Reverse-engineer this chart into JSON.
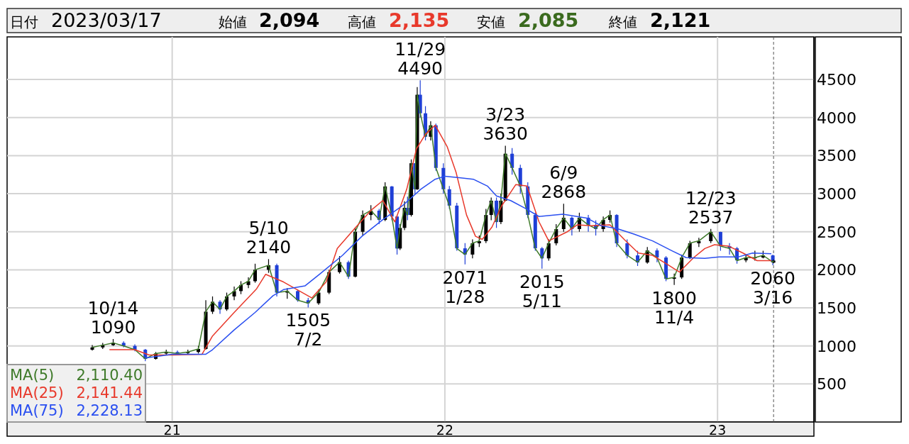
{
  "chart_data": {
    "type": "candlestick",
    "x": [
      "2020-09-16",
      "2020-09-30",
      "2020-10-14",
      "2020-10-28",
      "2020-11-12",
      "2020-11-26",
      "2020-12-10",
      "2020-12-24",
      "2021-01-08",
      "2021-01-22",
      "2021-02-05",
      "2021-02-15",
      "2021-02-24",
      "2021-03-06",
      "2021-03-15",
      "2021-03-25",
      "2021-04-03",
      "2021-04-13",
      "2021-04-22",
      "2021-05-10",
      "2021-05-21",
      "2021-06-04",
      "2021-06-18",
      "2021-07-02",
      "2021-07-16",
      "2021-07-30",
      "2021-08-13",
      "2021-08-25",
      "2021-09-03",
      "2021-09-13",
      "2021-09-24",
      "2021-10-05",
      "2021-10-13",
      "2021-10-22",
      "2021-10-29",
      "2021-11-02",
      "2021-11-08",
      "2021-11-12",
      "2021-11-17",
      "2021-11-22",
      "2021-11-25",
      "2021-11-29",
      "2021-12-06",
      "2021-12-13",
      "2021-12-20",
      "2021-12-30",
      "2022-01-07",
      "2022-01-17",
      "2022-01-28",
      "2022-02-07",
      "2022-02-16",
      "2022-02-25",
      "2022-03-04",
      "2022-03-11",
      "2022-03-17",
      "2022-03-23",
      "2022-04-01",
      "2022-04-12",
      "2022-04-22",
      "2022-05-02",
      "2022-05-11",
      "2022-05-20",
      "2022-05-30",
      "2022-06-09",
      "2022-06-20",
      "2022-06-30",
      "2022-07-12",
      "2022-07-22",
      "2022-08-01",
      "2022-08-10",
      "2022-08-19",
      "2022-09-02",
      "2022-09-16",
      "2022-09-29",
      "2022-10-12",
      "2022-10-24",
      "2022-11-04",
      "2022-11-14",
      "2022-11-25",
      "2022-12-07",
      "2022-12-23",
      "2023-01-05",
      "2023-01-17",
      "2023-01-27",
      "2023-02-08",
      "2023-02-20",
      "2023-03-03",
      "2023-03-16",
      "2023-03-17"
    ],
    "ohlc": [
      [
        950,
        1010,
        940,
        980
      ],
      [
        980,
        1040,
        960,
        1010
      ],
      [
        1010,
        1090,
        1000,
        1040
      ],
      [
        1040,
        1060,
        980,
        1000
      ],
      [
        1000,
        1020,
        930,
        950
      ],
      [
        950,
        960,
        800,
        830
      ],
      [
        830,
        920,
        820,
        900
      ],
      [
        900,
        950,
        880,
        920
      ],
      [
        920,
        940,
        880,
        905
      ],
      [
        905,
        950,
        890,
        920
      ],
      [
        920,
        1000,
        900,
        960
      ],
      [
        960,
        1600,
        950,
        1450
      ],
      [
        1450,
        1650,
        1420,
        1580
      ],
      [
        1580,
        1600,
        1420,
        1480
      ],
      [
        1480,
        1700,
        1460,
        1650
      ],
      [
        1650,
        1780,
        1600,
        1720
      ],
      [
        1720,
        1850,
        1680,
        1800
      ],
      [
        1800,
        1900,
        1760,
        1850
      ],
      [
        1850,
        2080,
        1830,
        2000
      ],
      [
        2000,
        2140,
        1960,
        2060
      ],
      [
        2060,
        2080,
        1650,
        1700
      ],
      [
        1700,
        1760,
        1620,
        1720
      ],
      [
        1720,
        1740,
        1580,
        1600
      ],
      [
        1600,
        1630,
        1505,
        1560
      ],
      [
        1560,
        1740,
        1540,
        1700
      ],
      [
        1700,
        2000,
        1680,
        1970
      ],
      [
        1970,
        2180,
        1950,
        2100
      ],
      [
        2100,
        2120,
        1880,
        1910
      ],
      [
        1910,
        2550,
        1900,
        2500
      ],
      [
        2500,
        2780,
        2450,
        2720
      ],
      [
        2720,
        2850,
        2650,
        2777
      ],
      [
        2777,
        2800,
        2600,
        2655
      ],
      [
        2655,
        3150,
        2640,
        3095
      ],
      [
        3095,
        3100,
        2650,
        2700
      ],
      [
        2700,
        2720,
        2200,
        2280
      ],
      [
        2280,
        2600,
        2260,
        2550
      ],
      [
        2550,
        2900,
        2520,
        2814
      ],
      [
        2814,
        2960,
        2650,
        2720
      ],
      [
        2720,
        3450,
        2700,
        3400
      ],
      [
        3400,
        3400,
        3000,
        3058
      ],
      [
        3058,
        4400,
        3050,
        4300
      ],
      [
        4300,
        4490,
        4000,
        4056
      ],
      [
        4056,
        4150,
        3700,
        3748
      ],
      [
        3748,
        3950,
        3700,
        3898
      ],
      [
        3898,
        3920,
        3300,
        3338
      ],
      [
        3338,
        3400,
        3000,
        3058
      ],
      [
        3058,
        3100,
        2800,
        2843
      ],
      [
        2843,
        2880,
        2250,
        2282
      ],
      [
        2282,
        2350,
        2071,
        2200
      ],
      [
        2200,
        2400,
        2150,
        2348
      ],
      [
        2348,
        2450,
        2300,
        2376
      ],
      [
        2376,
        2800,
        2350,
        2720
      ],
      [
        2720,
        2950,
        2650,
        2908
      ],
      [
        2908,
        2950,
        2550,
        2627
      ],
      [
        2627,
        3000,
        2600,
        2908
      ],
      [
        2908,
        3630,
        2900,
        3525
      ],
      [
        3525,
        3600,
        3250,
        3338
      ],
      [
        3338,
        3380,
        3000,
        3095
      ],
      [
        3095,
        3150,
        2680,
        2720
      ],
      [
        2720,
        2750,
        2250,
        2282
      ],
      [
        2282,
        2300,
        2015,
        2150
      ],
      [
        2150,
        2400,
        2120,
        2348
      ],
      [
        2348,
        2600,
        2320,
        2535
      ],
      [
        2535,
        2868,
        2500,
        2684
      ],
      [
        2684,
        2700,
        2450,
        2535
      ],
      [
        2535,
        2750,
        2500,
        2684
      ],
      [
        2684,
        2720,
        2500,
        2590
      ],
      [
        2590,
        2650,
        2450,
        2535
      ],
      [
        2535,
        2700,
        2500,
        2655
      ],
      [
        2655,
        2780,
        2620,
        2720
      ],
      [
        2720,
        2730,
        2300,
        2348
      ],
      [
        2348,
        2400,
        2150,
        2189
      ],
      [
        2189,
        2250,
        2050,
        2096
      ],
      [
        2096,
        2300,
        2080,
        2254
      ],
      [
        2254,
        2280,
        2100,
        2161
      ],
      [
        2161,
        2180,
        1850,
        1881
      ],
      [
        1881,
        1950,
        1800,
        1900
      ],
      [
        1900,
        2200,
        1880,
        2161
      ],
      [
        2161,
        2380,
        2140,
        2348
      ],
      [
        2348,
        2420,
        2300,
        2376
      ],
      [
        2376,
        2537,
        2350,
        2497
      ],
      [
        2497,
        2500,
        2250,
        2310
      ],
      [
        2310,
        2350,
        2200,
        2282
      ],
      [
        2282,
        2300,
        2080,
        2124
      ],
      [
        2124,
        2200,
        2100,
        2161
      ],
      [
        2161,
        2250,
        2120,
        2161
      ],
      [
        2161,
        2250,
        2150,
        2189
      ],
      [
        2189,
        2200,
        2060,
        2100
      ],
      [
        2094,
        2135,
        2085,
        2121
      ]
    ],
    "series": [
      {
        "name": "MA(5)",
        "type": "line",
        "color": "#3f7a2a",
        "values": [
          980,
          1010,
          1040,
          1000,
          950,
          830,
          900,
          920,
          900,
          920,
          960,
          1450,
          1580,
          1480,
          1650,
          1720,
          1800,
          1850,
          2000,
          2060,
          1700,
          1720,
          1600,
          1560,
          1700,
          1970,
          2100,
          1910,
          2500,
          2720,
          2780,
          2660,
          3100,
          2700,
          2280,
          2550,
          2810,
          2720,
          3400,
          3060,
          4300,
          4060,
          3750,
          3900,
          3340,
          3060,
          2840,
          2280,
          2200,
          2350,
          2380,
          2720,
          2910,
          2630,
          2910,
          3530,
          3340,
          3100,
          2720,
          2280,
          2150,
          2350,
          2540,
          2680,
          2540,
          2680,
          2590,
          2540,
          2660,
          2720,
          2350,
          2190,
          2100,
          2250,
          2160,
          1880,
          1900,
          2160,
          2350,
          2380,
          2500,
          2310,
          2280,
          2120,
          2160,
          2160,
          2190,
          2100,
          2120
        ]
      },
      {
        "name": "MA(25)",
        "type": "line",
        "color": "#e8392b",
        "x": [
          "2020-10-09",
          "2020-11-12",
          "2020-12-01",
          "2021-01-01",
          "2021-02-10",
          "2021-02-24",
          "2021-03-25",
          "2021-04-24",
          "2021-05-06",
          "2021-05-30",
          "2021-07-07",
          "2021-07-26",
          "2021-08-10",
          "2021-09-02",
          "2021-09-24",
          "2021-10-10",
          "2021-10-26",
          "2021-11-11",
          "2021-11-24",
          "2021-12-06",
          "2021-12-19",
          "2022-01-04",
          "2022-01-16",
          "2022-01-30",
          "2022-02-11",
          "2022-02-20",
          "2022-03-05",
          "2022-03-18",
          "2022-04-06",
          "2022-04-21",
          "2022-05-07",
          "2022-05-20",
          "2022-06-14",
          "2022-06-27",
          "2022-07-16",
          "2022-08-10",
          "2022-08-29",
          "2022-09-17",
          "2022-10-06",
          "2022-10-26",
          "2022-11-11",
          "2022-11-30",
          "2022-12-15",
          "2022-12-28",
          "2023-01-16",
          "2023-02-04",
          "2023-02-23",
          "2023-03-14"
        ],
        "values": [
          950,
          950,
          880,
          880,
          890,
          1130,
          1440,
          1750,
          1940,
          1840,
          1630,
          1840,
          2280,
          2540,
          2780,
          2910,
          2630,
          3060,
          3590,
          3780,
          3900,
          3620,
          3280,
          2720,
          2440,
          2400,
          2560,
          2840,
          3120,
          3100,
          2630,
          2380,
          2500,
          2590,
          2580,
          2590,
          2400,
          2220,
          2190,
          2070,
          1970,
          2160,
          2280,
          2330,
          2310,
          2220,
          2120,
          2120
        ]
      },
      {
        "name": "MA(75)",
        "type": "line",
        "color": "#2a4ff0",
        "x": [
          "2020-11-26",
          "2021-01-01",
          "2021-02-15",
          "2021-02-24",
          "2021-03-25",
          "2021-04-22",
          "2021-05-16",
          "2021-05-30",
          "2021-06-28",
          "2021-07-17",
          "2021-08-17",
          "2021-09-12",
          "2021-10-10",
          "2021-11-05",
          "2021-11-30",
          "2021-12-19",
          "2022-01-01",
          "2022-01-20",
          "2022-02-08",
          "2022-02-27",
          "2022-03-11",
          "2022-03-30",
          "2022-04-18",
          "2022-05-07",
          "2022-06-08",
          "2022-07-10",
          "2022-07-29",
          "2022-08-20",
          "2022-09-11",
          "2022-10-06",
          "2022-11-01",
          "2022-11-20",
          "2022-12-15",
          "2023-01-03",
          "2023-01-29",
          "2023-02-17",
          "2023-03-14"
        ],
        "values": [
          840,
          890,
          890,
          950,
          1210,
          1440,
          1660,
          1740,
          1790,
          1940,
          2190,
          2440,
          2660,
          2840,
          3060,
          3190,
          3230,
          3210,
          3190,
          3100,
          2970,
          2910,
          2810,
          2700,
          2730,
          2680,
          2580,
          2540,
          2470,
          2380,
          2250,
          2160,
          2150,
          2170,
          2170,
          2220,
          2210
        ]
      }
    ],
    "xlim": [
      "2020-05-25",
      "2023-05-10"
    ],
    "xticks": [
      {
        "value": "2021-01-01",
        "label": "21"
      },
      {
        "value": "2022-01-01",
        "label": "22"
      },
      {
        "value": "2023-01-01",
        "label": "23"
      }
    ],
    "ylim": [
      0,
      5060
    ],
    "yticks": [
      500,
      1000,
      1500,
      2000,
      2500,
      3000,
      3500,
      4000,
      4500
    ],
    "grid": true,
    "legend": "bottom left",
    "ref_lines": [
      {
        "axis": "x",
        "value": "2023-03-17",
        "color": "#555555",
        "line_style": "dashed"
      }
    ],
    "annotations": [
      "日付",
      "2023/03/17",
      "始値",
      "2,094",
      "高値",
      "2,135",
      "安値",
      "2,085",
      "終値",
      "2,121",
      "2,110.40",
      "2,141.44",
      "2,228.13",
      {
        "text": "10/14",
        "x": "2020-10-14",
        "y": 1090
      },
      {
        "text": "1090",
        "x": "2020-10-14",
        "y": 1090
      },
      {
        "text": "5/10",
        "x": "2021-05-10",
        "y": 2140
      },
      {
        "text": "2140",
        "x": "2021-05-10",
        "y": 2140
      },
      {
        "text": "1505",
        "x": "2021-07-02",
        "y": 1505
      },
      {
        "text": "7/2",
        "x": "2021-07-02",
        "y": 1505
      },
      {
        "text": "11/29",
        "x": "2021-11-29",
        "y": 4490
      },
      {
        "text": "4490",
        "x": "2021-11-29",
        "y": 4490
      },
      {
        "text": "2071",
        "x": "2022-01-28",
        "y": 2071
      },
      {
        "text": "1/28",
        "x": "2022-01-28",
        "y": 2071
      },
      {
        "text": "3/23",
        "x": "2022-03-23",
        "y": 3630
      },
      {
        "text": "3630",
        "x": "2022-03-23",
        "y": 3630
      },
      {
        "text": "2015",
        "x": "2022-05-11",
        "y": 2015
      },
      {
        "text": "5/11",
        "x": "2022-05-11",
        "y": 2015
      },
      {
        "text": "6/9",
        "x": "2022-06-09",
        "y": 2868
      },
      {
        "text": "2868",
        "x": "2022-06-09",
        "y": 2868
      },
      {
        "text": "1800",
        "x": "2022-11-04",
        "y": 1800
      },
      {
        "text": "11/4",
        "x": "2022-11-04",
        "y": 1800
      },
      {
        "text": "12/23",
        "x": "2022-12-23",
        "y": 2537
      },
      {
        "text": "2537",
        "x": "2022-12-23",
        "y": 2537
      },
      {
        "text": "2060",
        "x": "2023-03-16",
        "y": 2060
      },
      {
        "text": "3/16",
        "x": "2023-03-16",
        "y": 2060
      }
    ]
  }
}
